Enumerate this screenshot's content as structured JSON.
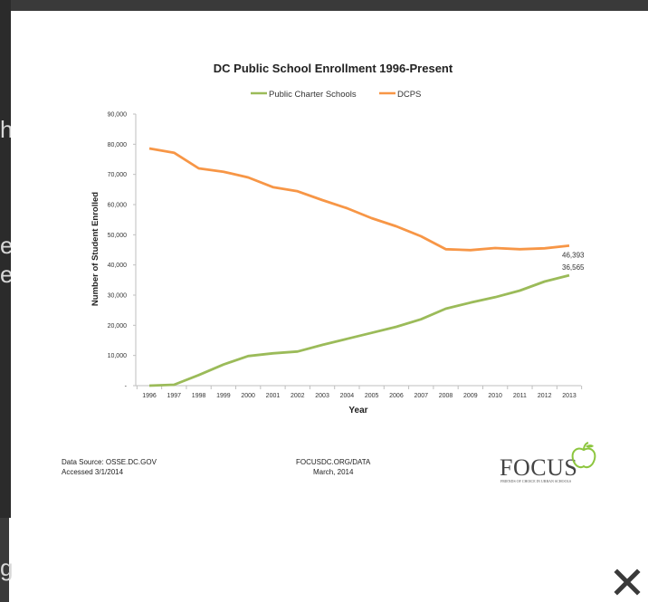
{
  "chart_data": {
    "type": "line",
    "title": "DC Public School Enrollment 1996-Present",
    "xlabel": "Year",
    "ylabel": "Number of Student Enrolled",
    "categories": [
      "1996",
      "1997",
      "1998",
      "1999",
      "2000",
      "2001",
      "2002",
      "2003",
      "2004",
      "2005",
      "2006",
      "2007",
      "2008",
      "2009",
      "2010",
      "2011",
      "2012",
      "2013"
    ],
    "ylim": [
      0,
      90000
    ],
    "yticks": [
      "-",
      "10,000",
      "20,000",
      "30,000",
      "40,000",
      "50,000",
      "60,000",
      "70,000",
      "80,000",
      "90,000"
    ],
    "legend_position": "top-center",
    "grid": false,
    "series": [
      {
        "name": "Public Charter Schools",
        "color": "#9bbb59",
        "values": [
          0,
          300,
          3500,
          7000,
          9800,
          10700,
          11300,
          13500,
          15500,
          17500,
          19500,
          22000,
          25500,
          27500,
          29300,
          31500,
          34500,
          36565
        ],
        "end_label": "36,565"
      },
      {
        "name": "DCPS",
        "color": "#f79646",
        "values": [
          78600,
          77200,
          72000,
          70900,
          69000,
          65800,
          64400,
          61500,
          58800,
          55500,
          52800,
          49500,
          45200,
          44900,
          45600,
          45200,
          45500,
          46393
        ],
        "end_label": "46,393"
      }
    ]
  },
  "footer": {
    "source_line1": "Data Source: OSSE.DC.GOV",
    "source_line2": "Accessed 3/1/2014",
    "center_line1": "FOCUSDC.ORG/DATA",
    "center_line2": "March, 2014"
  },
  "logo": {
    "word": "FOCUS",
    "tagline": "FRIENDS OF CHOICE IN URBAN SCHOOLS",
    "apple_color": "#8dc63f"
  },
  "backdrop": {
    "glyph_top": "h",
    "glyph_mid1": "e",
    "glyph_mid2": "e",
    "glyph_bottom": "g"
  },
  "close": {
    "icon": "close-icon"
  }
}
